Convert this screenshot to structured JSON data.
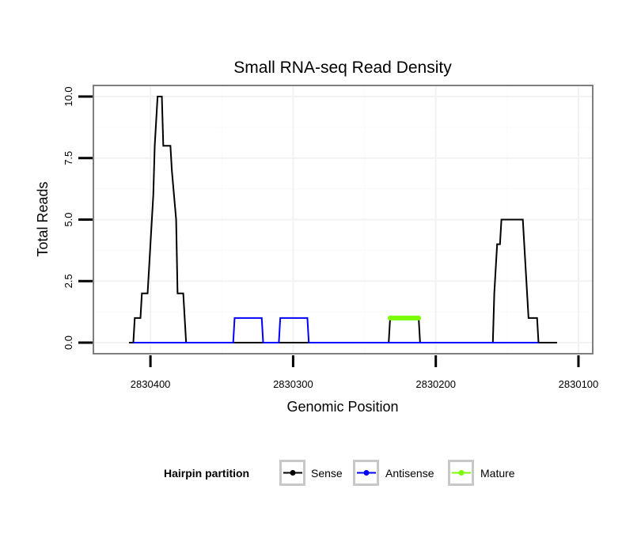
{
  "chart_data": {
    "type": "line",
    "title": "Small RNA-seq Read Density",
    "xlabel": "Genomic Position",
    "ylabel": "Total Reads",
    "x_reversed": true,
    "xlim": [
      2830440,
      2830090
    ],
    "ylim": [
      -0.45,
      10.45
    ],
    "x_ticks": [
      2830400,
      2830300,
      2830200,
      2830100
    ],
    "x_tick_labels": [
      "2830400",
      "2830300",
      "2830200",
      "2830100"
    ],
    "y_ticks": [
      0,
      2.5,
      5,
      7.5,
      10
    ],
    "y_tick_labels": [
      "0.0",
      "2.5",
      "5.0",
      "7.5",
      "10.0"
    ],
    "grid": true,
    "legend": {
      "title": "Hairpin partition",
      "position": "bottom",
      "entries": [
        "Sense",
        "Antisense",
        "Mature"
      ]
    },
    "series": [
      {
        "name": "Sense",
        "color": "#000000",
        "points": [
          [
            2830415,
            0
          ],
          [
            2830412,
            0
          ],
          [
            2830411,
            1
          ],
          [
            2830407,
            1
          ],
          [
            2830406,
            2
          ],
          [
            2830402,
            2
          ],
          [
            2830401,
            3
          ],
          [
            2830400,
            4
          ],
          [
            2830398,
            6
          ],
          [
            2830397,
            8
          ],
          [
            2830396,
            9
          ],
          [
            2830395,
            10
          ],
          [
            2830392,
            10
          ],
          [
            2830391,
            8
          ],
          [
            2830386,
            8
          ],
          [
            2830385,
            7
          ],
          [
            2830382,
            5
          ],
          [
            2830381,
            2
          ],
          [
            2830377,
            2
          ],
          [
            2830376,
            1
          ],
          [
            2830375,
            0
          ],
          [
            2830300,
            0
          ],
          [
            2830233,
            0
          ],
          [
            2830232,
            1
          ],
          [
            2830212,
            1
          ],
          [
            2830211,
            0
          ],
          [
            2830160,
            0
          ],
          [
            2830159,
            2
          ],
          [
            2830158,
            3
          ],
          [
            2830157,
            4
          ],
          [
            2830155,
            4
          ],
          [
            2830154,
            5
          ],
          [
            2830139,
            5
          ],
          [
            2830138,
            4
          ],
          [
            2830136,
            2
          ],
          [
            2830135,
            1
          ],
          [
            2830129,
            1
          ],
          [
            2830128,
            0
          ],
          [
            2830115,
            0
          ]
        ]
      },
      {
        "name": "Antisense",
        "color": "#0000ff",
        "points": [
          [
            2830412,
            0
          ],
          [
            2830342,
            0
          ],
          [
            2830341,
            1
          ],
          [
            2830322,
            1
          ],
          [
            2830321,
            0
          ],
          [
            2830310,
            0
          ],
          [
            2830309,
            1
          ],
          [
            2830290,
            1
          ],
          [
            2830289,
            0
          ],
          [
            2830233,
            0
          ],
          [
            2830128,
            0
          ]
        ]
      },
      {
        "name": "Mature",
        "color": "#7cfc00",
        "points": [
          [
            2830232,
            1
          ],
          [
            2830212,
            1
          ]
        ]
      }
    ]
  }
}
